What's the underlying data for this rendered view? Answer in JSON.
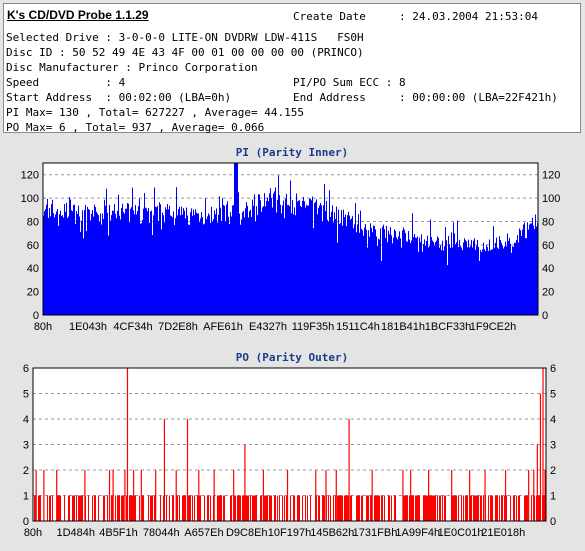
{
  "app": {
    "title": "K's CD/DVD Probe 1.1.29"
  },
  "info": {
    "create_date": "Create Date     : 24.03.2004 21:53:04",
    "selected_drive": "Selected Drive : 3-0-0-0 LITE-ON DVDRW LDW-411S   FS0H",
    "disc_id": "Disc ID : 50 52 49 4E 43 4F 00 01 00 00 00 00 (PRINCO)",
    "manufacturer": "Disc Manufacturer : Princo Corporation",
    "speed": "Speed          : 4",
    "pipo_sum": "PI/PO Sum ECC : 8",
    "start_address": "Start Address  : 00:02:00 (LBA=0h)",
    "end_address": "End Address     : 00:00:00 (LBA=22F421h)",
    "pi_stats": "PI Max= 130 , Total= 627227 , Average= 44.155",
    "po_stats": "PO Max= 6 , Total= 937 , Average= 0.066"
  },
  "colors": {
    "pi": "#0000ff",
    "po": "#ff0000",
    "title": "#1b3a8a",
    "panel_bg": "#e4e4e4",
    "plot_bg": "#ffffff"
  },
  "chart_data": [
    {
      "type": "bar",
      "title": "PI (Parity Inner)",
      "xlabel": "",
      "ylabel": "",
      "ylim": [
        0,
        130
      ],
      "yticks": [
        0,
        20,
        40,
        60,
        80,
        100,
        120
      ],
      "grid": true,
      "x_tick_labels": [
        "80h",
        "1E043h",
        "4CF34h",
        "7D2E8h",
        "AFE61h",
        "E4327h",
        "119F35h",
        "1511C4h",
        "181B41h",
        "1BCF33h",
        "1F9CE2h"
      ],
      "envelope": {
        "x": [
          0,
          0.02,
          0.05,
          0.1,
          0.2,
          0.3,
          0.4,
          0.45,
          0.5,
          0.55,
          0.6,
          0.65,
          0.7,
          0.8,
          0.9,
          0.95,
          1.0
        ],
        "y": [
          100,
          95,
          92,
          90,
          92,
          90,
          90,
          105,
          100,
          98,
          90,
          80,
          72,
          65,
          62,
          68,
          85
        ]
      },
      "max": 130,
      "average": 44.155
    },
    {
      "type": "bar",
      "title": "PO (Parity Outer)",
      "xlabel": "",
      "ylabel": "",
      "ylim": [
        0,
        6
      ],
      "yticks": [
        0,
        1,
        2,
        3,
        4,
        5,
        6
      ],
      "grid": true,
      "x_tick_labels": [
        "80h",
        "1D484h",
        "4B5F1h",
        "78044h",
        "A657Eh",
        "D9C8Eh",
        "10F197h",
        "145B62h",
        "1731FBh",
        "1A99F4h",
        "1E0C01h",
        "21E018h"
      ],
      "baseline": 1,
      "spikes": [
        {
          "x": 0.005,
          "y": 2
        },
        {
          "x": 0.02,
          "y": 2
        },
        {
          "x": 0.045,
          "y": 2
        },
        {
          "x": 0.1,
          "y": 2
        },
        {
          "x": 0.148,
          "y": 2
        },
        {
          "x": 0.155,
          "y": 2
        },
        {
          "x": 0.178,
          "y": 2
        },
        {
          "x": 0.183,
          "y": 6
        },
        {
          "x": 0.195,
          "y": 2
        },
        {
          "x": 0.21,
          "y": 2
        },
        {
          "x": 0.238,
          "y": 2
        },
        {
          "x": 0.255,
          "y": 4
        },
        {
          "x": 0.278,
          "y": 2
        },
        {
          "x": 0.3,
          "y": 4
        },
        {
          "x": 0.322,
          "y": 2
        },
        {
          "x": 0.352,
          "y": 2
        },
        {
          "x": 0.39,
          "y": 2
        },
        {
          "x": 0.412,
          "y": 3
        },
        {
          "x": 0.448,
          "y": 2
        },
        {
          "x": 0.495,
          "y": 2
        },
        {
          "x": 0.55,
          "y": 2
        },
        {
          "x": 0.57,
          "y": 2
        },
        {
          "x": 0.59,
          "y": 2
        },
        {
          "x": 0.615,
          "y": 4
        },
        {
          "x": 0.66,
          "y": 2
        },
        {
          "x": 0.72,
          "y": 2
        },
        {
          "x": 0.735,
          "y": 2
        },
        {
          "x": 0.77,
          "y": 2
        },
        {
          "x": 0.815,
          "y": 2
        },
        {
          "x": 0.85,
          "y": 2
        },
        {
          "x": 0.88,
          "y": 2
        },
        {
          "x": 0.92,
          "y": 2
        },
        {
          "x": 0.965,
          "y": 2
        },
        {
          "x": 0.975,
          "y": 2
        },
        {
          "x": 0.982,
          "y": 3
        },
        {
          "x": 0.988,
          "y": 5
        },
        {
          "x": 0.993,
          "y": 6
        },
        {
          "x": 0.997,
          "y": 2
        }
      ],
      "max": 6,
      "average": 0.066
    }
  ]
}
